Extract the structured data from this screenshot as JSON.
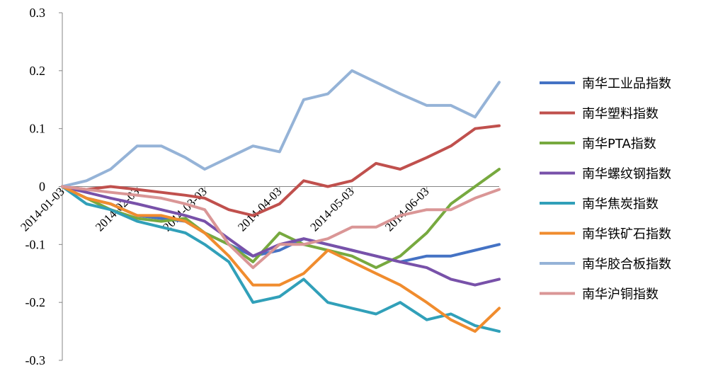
{
  "chart_data": {
    "type": "line",
    "title": "",
    "xlabel": "",
    "ylabel": "",
    "ylim": [
      -0.3,
      0.3
    ],
    "y_ticks": [
      "0.3",
      "0.2",
      "0.1",
      "0",
      "-0.1",
      "-0.2",
      "-0.3"
    ],
    "x_ticks": [
      "2014-01-03",
      "2014-02-03",
      "2014-03-03",
      "2014-04-03",
      "2014-05-03",
      "2014-06-03"
    ],
    "x_range": [
      "2014-01-03",
      "2014-07-03"
    ],
    "grid": false,
    "legend_position": "right",
    "x": [
      "2014-01-03",
      "2014-01-13",
      "2014-01-23",
      "2014-02-03",
      "2014-02-13",
      "2014-02-23",
      "2014-03-03",
      "2014-03-13",
      "2014-03-23",
      "2014-04-03",
      "2014-04-13",
      "2014-04-23",
      "2014-05-03",
      "2014-05-13",
      "2014-05-23",
      "2014-06-03",
      "2014-06-13",
      "2014-06-23",
      "2014-07-03"
    ],
    "series": [
      {
        "name": "南华工业品指数",
        "color": "#4472c4",
        "values": [
          0.0,
          -0.02,
          -0.03,
          -0.05,
          -0.055,
          -0.06,
          -0.08,
          -0.1,
          -0.12,
          -0.11,
          -0.09,
          -0.1,
          -0.11,
          -0.12,
          -0.13,
          -0.12,
          -0.12,
          -0.11,
          -0.1
        ]
      },
      {
        "name": "南华塑料指数",
        "color": "#c0504d",
        "values": [
          0.0,
          -0.005,
          0.0,
          -0.005,
          -0.01,
          -0.015,
          -0.02,
          -0.04,
          -0.05,
          -0.03,
          0.01,
          0.0,
          0.01,
          0.04,
          0.03,
          0.05,
          0.07,
          0.1,
          0.105
        ]
      },
      {
        "name": "南华PTA指数",
        "color": "#77a93f",
        "values": [
          0.0,
          -0.02,
          -0.04,
          -0.055,
          -0.06,
          -0.055,
          -0.08,
          -0.1,
          -0.13,
          -0.08,
          -0.1,
          -0.11,
          -0.12,
          -0.14,
          -0.12,
          -0.08,
          -0.03,
          0.0,
          0.03
        ]
      },
      {
        "name": "南华螺纹钢指数",
        "color": "#7851a9",
        "values": [
          0.0,
          -0.01,
          -0.02,
          -0.03,
          -0.04,
          -0.05,
          -0.06,
          -0.09,
          -0.12,
          -0.1,
          -0.09,
          -0.1,
          -0.11,
          -0.12,
          -0.13,
          -0.14,
          -0.16,
          -0.17,
          -0.16
        ]
      },
      {
        "name": "南华焦炭指数",
        "color": "#31a0b9",
        "values": [
          0.0,
          -0.03,
          -0.04,
          -0.06,
          -0.07,
          -0.08,
          -0.1,
          -0.13,
          -0.2,
          -0.19,
          -0.16,
          -0.2,
          -0.21,
          -0.22,
          -0.2,
          -0.23,
          -0.22,
          -0.24,
          -0.25
        ]
      },
      {
        "name": "南华铁矿石指数",
        "color": "#f08c2e",
        "values": [
          0.0,
          -0.02,
          -0.03,
          -0.05,
          -0.05,
          -0.06,
          -0.08,
          -0.12,
          -0.17,
          -0.17,
          -0.15,
          -0.11,
          -0.13,
          -0.15,
          -0.17,
          -0.2,
          -0.23,
          -0.25,
          -0.21
        ]
      },
      {
        "name": "南华胶合板指数",
        "color": "#95b3d7",
        "values": [
          0.0,
          0.01,
          0.03,
          0.07,
          0.07,
          0.05,
          0.03,
          0.05,
          0.07,
          0.06,
          0.15,
          0.16,
          0.2,
          0.18,
          0.16,
          0.14,
          0.14,
          0.12,
          0.18
        ]
      },
      {
        "name": "南华沪铜指数",
        "color": "#da9696",
        "values": [
          0.0,
          -0.005,
          -0.01,
          -0.015,
          -0.02,
          -0.03,
          -0.04,
          -0.1,
          -0.14,
          -0.1,
          -0.1,
          -0.09,
          -0.07,
          -0.07,
          -0.05,
          -0.04,
          -0.04,
          -0.02,
          -0.005
        ]
      }
    ]
  }
}
